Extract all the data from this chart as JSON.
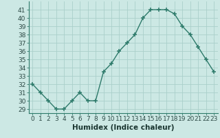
{
  "x": [
    0,
    1,
    2,
    3,
    4,
    5,
    6,
    7,
    8,
    9,
    10,
    11,
    12,
    13,
    14,
    15,
    16,
    17,
    18,
    19,
    20,
    21,
    22,
    23
  ],
  "y": [
    32,
    31,
    30,
    29,
    29,
    30,
    31,
    30,
    30,
    33.5,
    34.5,
    36,
    37,
    38,
    40,
    41,
    41,
    41,
    40.5,
    39,
    38,
    36.5,
    35,
    33.5
  ],
  "line_color": "#2d7a6a",
  "marker_color": "#2d7a6a",
  "bg_color": "#cce8e4",
  "grid_color": "#aacfca",
  "xlabel": "Humidex (Indice chaleur)",
  "ylabel_ticks": [
    29,
    30,
    31,
    32,
    33,
    34,
    35,
    36,
    37,
    38,
    39,
    40,
    41
  ],
  "ylim": [
    28.5,
    42.0
  ],
  "xlim": [
    -0.5,
    23.5
  ],
  "xticks": [
    0,
    1,
    2,
    3,
    4,
    5,
    6,
    7,
    8,
    9,
    10,
    11,
    12,
    13,
    14,
    15,
    16,
    17,
    18,
    19,
    20,
    21,
    22,
    23
  ],
  "xtick_labels": [
    "0",
    "1",
    "2",
    "3",
    "4",
    "5",
    "6",
    "7",
    "8",
    "9",
    "10",
    "11",
    "12",
    "13",
    "14",
    "15",
    "16",
    "17",
    "18",
    "19",
    "20",
    "21",
    "22",
    "23"
  ],
  "marker_size": 4,
  "line_width": 1.0,
  "xlabel_fontsize": 7.5,
  "tick_fontsize": 6.5
}
